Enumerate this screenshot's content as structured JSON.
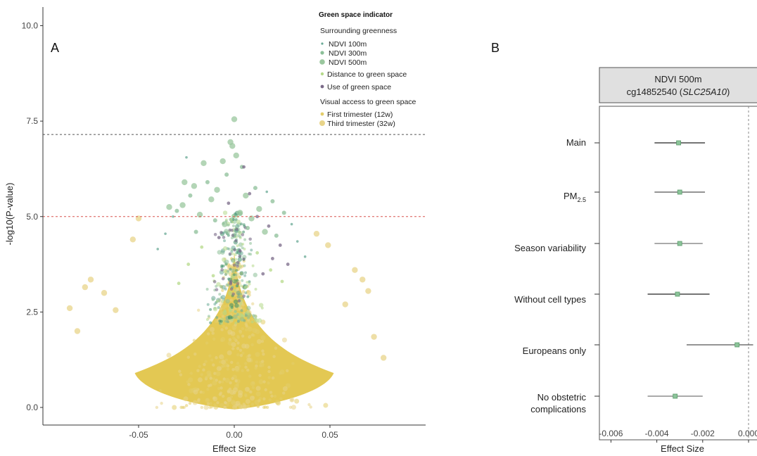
{
  "chart_data": [
    {
      "panel_label": "A",
      "type": "scatter",
      "xlabel": "Effect Size",
      "ylabel": "-log10(P-value)",
      "xlim": [
        -0.1,
        0.1
      ],
      "ylim": [
        -0.5,
        10.5
      ],
      "x_ticks": [
        -0.05,
        0.0,
        0.05
      ],
      "x_tick_labels": [
        "-0.05",
        "0.00",
        "0.05"
      ],
      "y_ticks": [
        0.0,
        2.5,
        5.0,
        7.5,
        10.0
      ],
      "y_tick_labels": [
        "0.0",
        "2.5",
        "5.0",
        "7.5",
        "10.0"
      ],
      "reference_lines": [
        {
          "y": 7.15,
          "color": "#555555",
          "style": "dashed"
        },
        {
          "y": 5.0,
          "color": "#d9534f",
          "style": "dashed"
        }
      ],
      "grid": false,
      "legend": {
        "title": "Green space indicator",
        "position": "top-right",
        "groups": [
          {
            "subtitle": "Surrounding greenness",
            "entries": [
              {
                "label": "NDVI 100m",
                "color": "#6aaa96",
                "size": "small"
              },
              {
                "label": "NDVI 300m",
                "color": "#8cbf98",
                "size": "medium"
              },
              {
                "label": "NDVI 500m",
                "color": "#9ac79e",
                "size": "large"
              }
            ]
          },
          {
            "subtitle": "",
            "entries": [
              {
                "label": "Distance to green space",
                "color": "#b5d98a",
                "size": "small"
              }
            ]
          },
          {
            "subtitle": "",
            "entries": [
              {
                "label": "Use of green space",
                "color": "#7a6a88",
                "size": "small"
              }
            ]
          },
          {
            "subtitle": "Visual access to green space",
            "entries": [
              {
                "label": "First trimester (12w)",
                "color": "#e3cd6a",
                "size": "small"
              },
              {
                "label": "Third trimester (32w)",
                "color": "#e8d489",
                "size": "large"
              }
            ]
          }
        ]
      },
      "series": [
        {
          "name": "NDVI 500m",
          "color": "#9ac79e",
          "points": [
            [
              0.0,
              7.55
            ],
            [
              -0.002,
              6.95
            ],
            [
              -0.001,
              6.85
            ],
            [
              0.001,
              6.6
            ],
            [
              -0.006,
              6.45
            ],
            [
              -0.016,
              6.4
            ],
            [
              -0.026,
              5.9
            ],
            [
              -0.021,
              5.8
            ],
            [
              -0.009,
              5.7
            ],
            [
              0.006,
              5.55
            ],
            [
              -0.012,
              5.45
            ],
            [
              -0.027,
              5.3
            ],
            [
              0.013,
              5.2
            ],
            [
              0.003,
              5.1
            ],
            [
              -0.018,
              5.05
            ],
            [
              -0.034,
              5.25
            ],
            [
              0.009,
              4.95
            ],
            [
              -0.005,
              4.8
            ],
            [
              0.016,
              4.6
            ]
          ]
        },
        {
          "name": "NDVI 300m",
          "color": "#8cbf98",
          "points": [
            [
              -0.004,
              6.1
            ],
            [
              0.004,
              6.3
            ],
            [
              -0.014,
              5.9
            ],
            [
              0.011,
              5.75
            ],
            [
              -0.023,
              5.55
            ],
            [
              0.02,
              5.4
            ],
            [
              -0.03,
              5.15
            ],
            [
              0.026,
              5.1
            ],
            [
              -0.01,
              4.9
            ],
            [
              0.007,
              4.7
            ],
            [
              -0.02,
              4.6
            ],
            [
              0.022,
              4.5
            ]
          ]
        },
        {
          "name": "NDVI 100m",
          "color": "#6aaa96",
          "points": [
            [
              -0.025,
              6.55
            ],
            [
              0.017,
              5.65
            ],
            [
              -0.032,
              5.0
            ],
            [
              0.03,
              4.8
            ],
            [
              -0.036,
              4.55
            ],
            [
              0.033,
              4.35
            ],
            [
              -0.04,
              4.15
            ],
            [
              0.037,
              3.95
            ]
          ]
        },
        {
          "name": "Use of green space",
          "color": "#7a6a88",
          "points": [
            [
              0.005,
              6.3
            ],
            [
              0.008,
              5.6
            ],
            [
              -0.003,
              5.35
            ],
            [
              0.012,
              5.0
            ],
            [
              0.018,
              4.75
            ],
            [
              -0.008,
              4.45
            ],
            [
              0.024,
              4.25
            ],
            [
              0.02,
              3.9
            ],
            [
              0.028,
              3.75
            ],
            [
              0.015,
              3.5
            ],
            [
              0.003,
              4.1
            ]
          ]
        },
        {
          "name": "Distance to green space",
          "color": "#b5d98a",
          "points": [
            [
              -0.017,
              4.2
            ],
            [
              0.012,
              4.05
            ],
            [
              -0.024,
              3.75
            ],
            [
              0.019,
              3.6
            ],
            [
              -0.011,
              3.45
            ],
            [
              0.025,
              3.3
            ],
            [
              -0.029,
              3.25
            ],
            [
              0.006,
              3.15
            ]
          ]
        },
        {
          "name": "Third trimester (32w)",
          "color": "#e8d489",
          "points": [
            [
              -0.05,
              4.95
            ],
            [
              -0.053,
              4.4
            ],
            [
              0.043,
              4.55
            ],
            [
              0.049,
              4.25
            ],
            [
              -0.075,
              3.35
            ],
            [
              -0.078,
              3.15
            ],
            [
              -0.068,
              3.0
            ],
            [
              0.063,
              3.6
            ],
            [
              0.067,
              3.35
            ],
            [
              0.07,
              3.05
            ],
            [
              -0.086,
              2.6
            ],
            [
              -0.082,
              2.0
            ],
            [
              0.073,
              1.85
            ],
            [
              0.078,
              1.3
            ],
            [
              -0.062,
              2.55
            ],
            [
              0.058,
              2.7
            ]
          ]
        }
      ],
      "bulk_cloud": {
        "name": "First trimester (12w)",
        "color": "#e1c54a",
        "apex": [
          0.0,
          4.1
        ],
        "base_y": -0.05,
        "half_width_at_y0_6": 0.052
      }
    },
    {
      "panel_label": "B",
      "type": "forest",
      "strip_title_line1": "NDVI 500m",
      "strip_title_probe": "cg14852540 (",
      "strip_title_gene": "SLC25A10",
      "strip_title_close": ")",
      "xlabel": "Effect Size",
      "xlim": [
        -0.0064,
        0.0002
      ],
      "x_ticks": [
        -0.006,
        -0.004,
        -0.002,
        0.0
      ],
      "x_tick_labels": [
        "-0.006",
        "-0.004",
        "-0.002",
        "0.000"
      ],
      "reference_line_x": 0.0,
      "point_color": "#8cc49a",
      "rows": [
        {
          "label": "Main",
          "estimate": -0.00305,
          "lower": -0.0041,
          "upper": -0.0019,
          "ci_color": "#222222"
        },
        {
          "label_main": "PM",
          "label_sub": "2.5",
          "estimate": -0.003,
          "lower": -0.0041,
          "upper": -0.0019,
          "ci_color": "#555555"
        },
        {
          "label": "Season variability",
          "estimate": -0.003,
          "lower": -0.0041,
          "upper": -0.002,
          "ci_color": "#777777"
        },
        {
          "label": "Without cell types",
          "estimate": -0.0031,
          "lower": -0.0044,
          "upper": -0.0017,
          "ci_color": "#222222"
        },
        {
          "label": "Europeans only",
          "estimate": -0.0005,
          "lower": -0.0027,
          "upper": 0.0002,
          "ci_color": "#555555"
        },
        {
          "label_line1": "No obstetric",
          "label_line2": "complications",
          "estimate": -0.0032,
          "lower": -0.0044,
          "upper": -0.002,
          "ci_color": "#777777"
        }
      ]
    }
  ]
}
